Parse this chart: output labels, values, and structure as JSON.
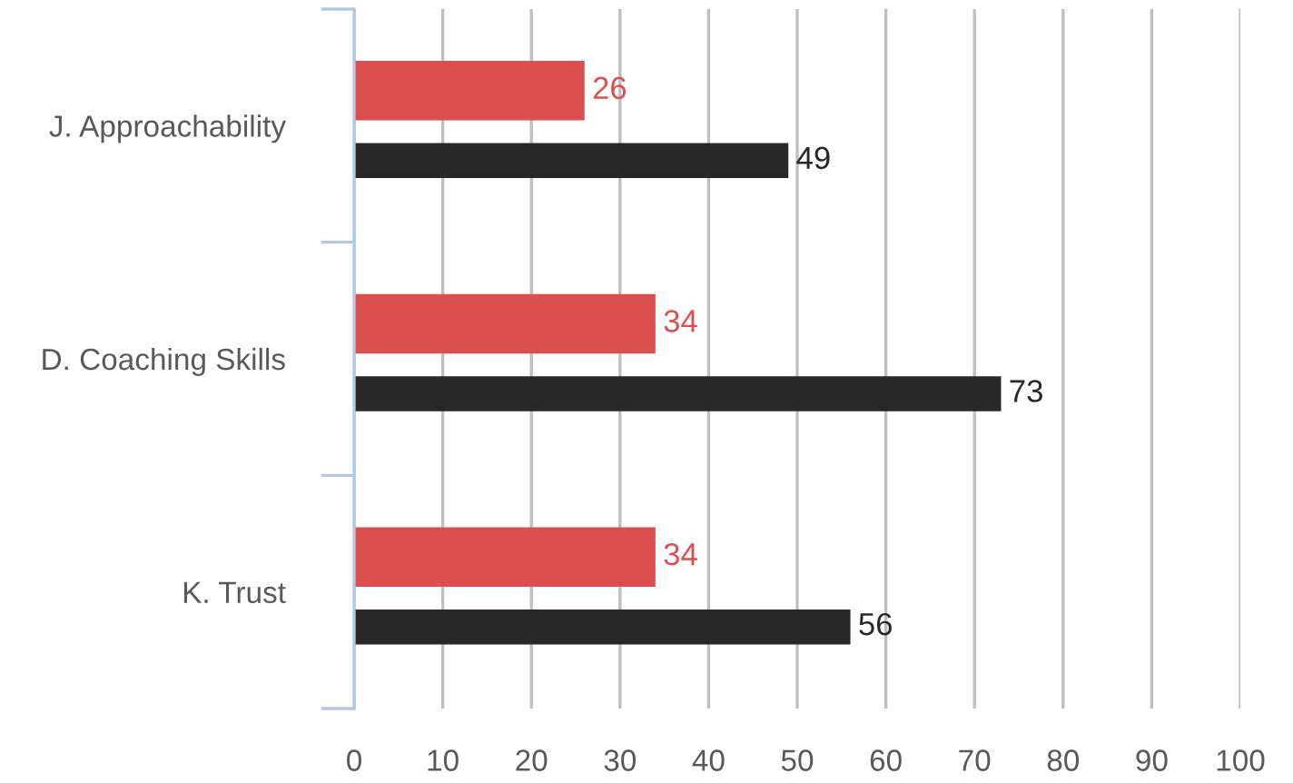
{
  "chart_data": {
    "type": "bar",
    "orientation": "horizontal",
    "categories": [
      "J. Approachability",
      "D. Coaching Skills",
      "K. Trust"
    ],
    "series": [
      {
        "color": "#dc4f4f",
        "values": [
          26,
          34,
          34
        ]
      },
      {
        "color": "#282828",
        "values": [
          49,
          73,
          56
        ]
      }
    ],
    "xlim": [
      0,
      100
    ],
    "xticks": [
      0,
      10,
      20,
      30,
      40,
      50,
      60,
      70,
      80,
      90,
      100
    ],
    "grid": "x",
    "data_labels": true,
    "legend": false
  }
}
